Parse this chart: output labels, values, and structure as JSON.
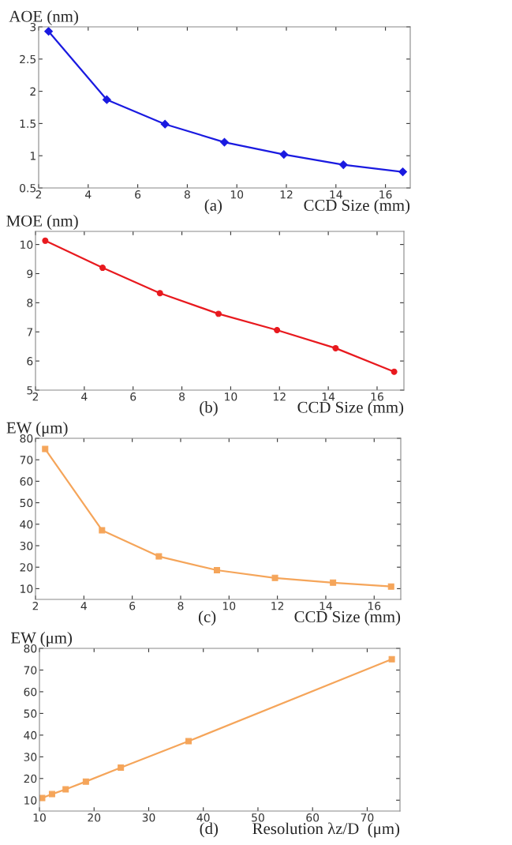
{
  "chart_data": [
    {
      "type": "line",
      "ylabel": "AOE (nm)",
      "xlabel": "CCD Size (mm)",
      "annotations": [
        "(a)"
      ],
      "x": [
        2.4,
        4.75,
        7.1,
        9.5,
        11.9,
        14.3,
        16.7
      ],
      "series": [
        {
          "color": "#1a1ae0",
          "values": [
            2.93,
            1.87,
            1.49,
            1.21,
            1.02,
            0.86,
            0.75
          ]
        }
      ],
      "marker": "diamond",
      "xlim": [
        2,
        17
      ],
      "xticks": [
        2,
        4,
        6,
        8,
        10,
        12,
        14,
        16
      ],
      "ylim": [
        0.5,
        3
      ],
      "yticks": [
        0.5,
        1,
        1.5,
        2,
        2.5,
        3
      ]
    },
    {
      "type": "line",
      "ylabel": "MOE (nm)",
      "xlabel": "CCD Size (mm)",
      "annotations": [
        "(b)"
      ],
      "x": [
        2.4,
        4.75,
        7.1,
        9.5,
        11.9,
        14.3,
        16.7
      ],
      "series": [
        {
          "color": "#e8191e",
          "values": [
            10.13,
            9.2,
            8.33,
            7.62,
            7.06,
            6.44,
            5.63
          ]
        }
      ],
      "marker": "circle",
      "xlim": [
        2,
        17.1
      ],
      "xticks": [
        2,
        4,
        6,
        8,
        10,
        12,
        14,
        16
      ],
      "ylim": [
        5,
        10.45
      ],
      "yticks": [
        5,
        6,
        7,
        8,
        9,
        10
      ]
    },
    {
      "type": "line",
      "ylabel": "EW (μm)",
      "xlabel": "CCD Size (mm)",
      "annotations": [
        "(c)"
      ],
      "x": [
        2.4,
        4.75,
        7.1,
        9.5,
        11.9,
        14.3,
        16.7
      ],
      "series": [
        {
          "color": "#f5a55a",
          "values": [
            75,
            37.2,
            25,
            18.6,
            15,
            12.8,
            11
          ]
        }
      ],
      "marker": "square",
      "xlim": [
        2,
        17.1
      ],
      "xticks": [
        2,
        4,
        6,
        8,
        10,
        12,
        14,
        16
      ],
      "ylim": [
        5,
        80
      ],
      "yticks": [
        10,
        20,
        30,
        40,
        50,
        60,
        70,
        80
      ]
    },
    {
      "type": "line",
      "ylabel": "EW (μm)",
      "xlabel": "Resolution λz/D  (μm)",
      "annotations": [
        "(d)"
      ],
      "x": [
        10.5,
        12.3,
        14.8,
        18.5,
        24.9,
        37.3,
        74.5
      ],
      "series": [
        {
          "color": "#f5a55a",
          "values": [
            11,
            12.8,
            15,
            18.6,
            25,
            37.2,
            75
          ]
        }
      ],
      "marker": "square",
      "xlim": [
        10,
        76
      ],
      "xticks": [
        10,
        20,
        30,
        40,
        50,
        60,
        70
      ],
      "ylim": [
        5,
        80
      ],
      "yticks": [
        10,
        20,
        30,
        40,
        50,
        60,
        70,
        80
      ]
    }
  ]
}
